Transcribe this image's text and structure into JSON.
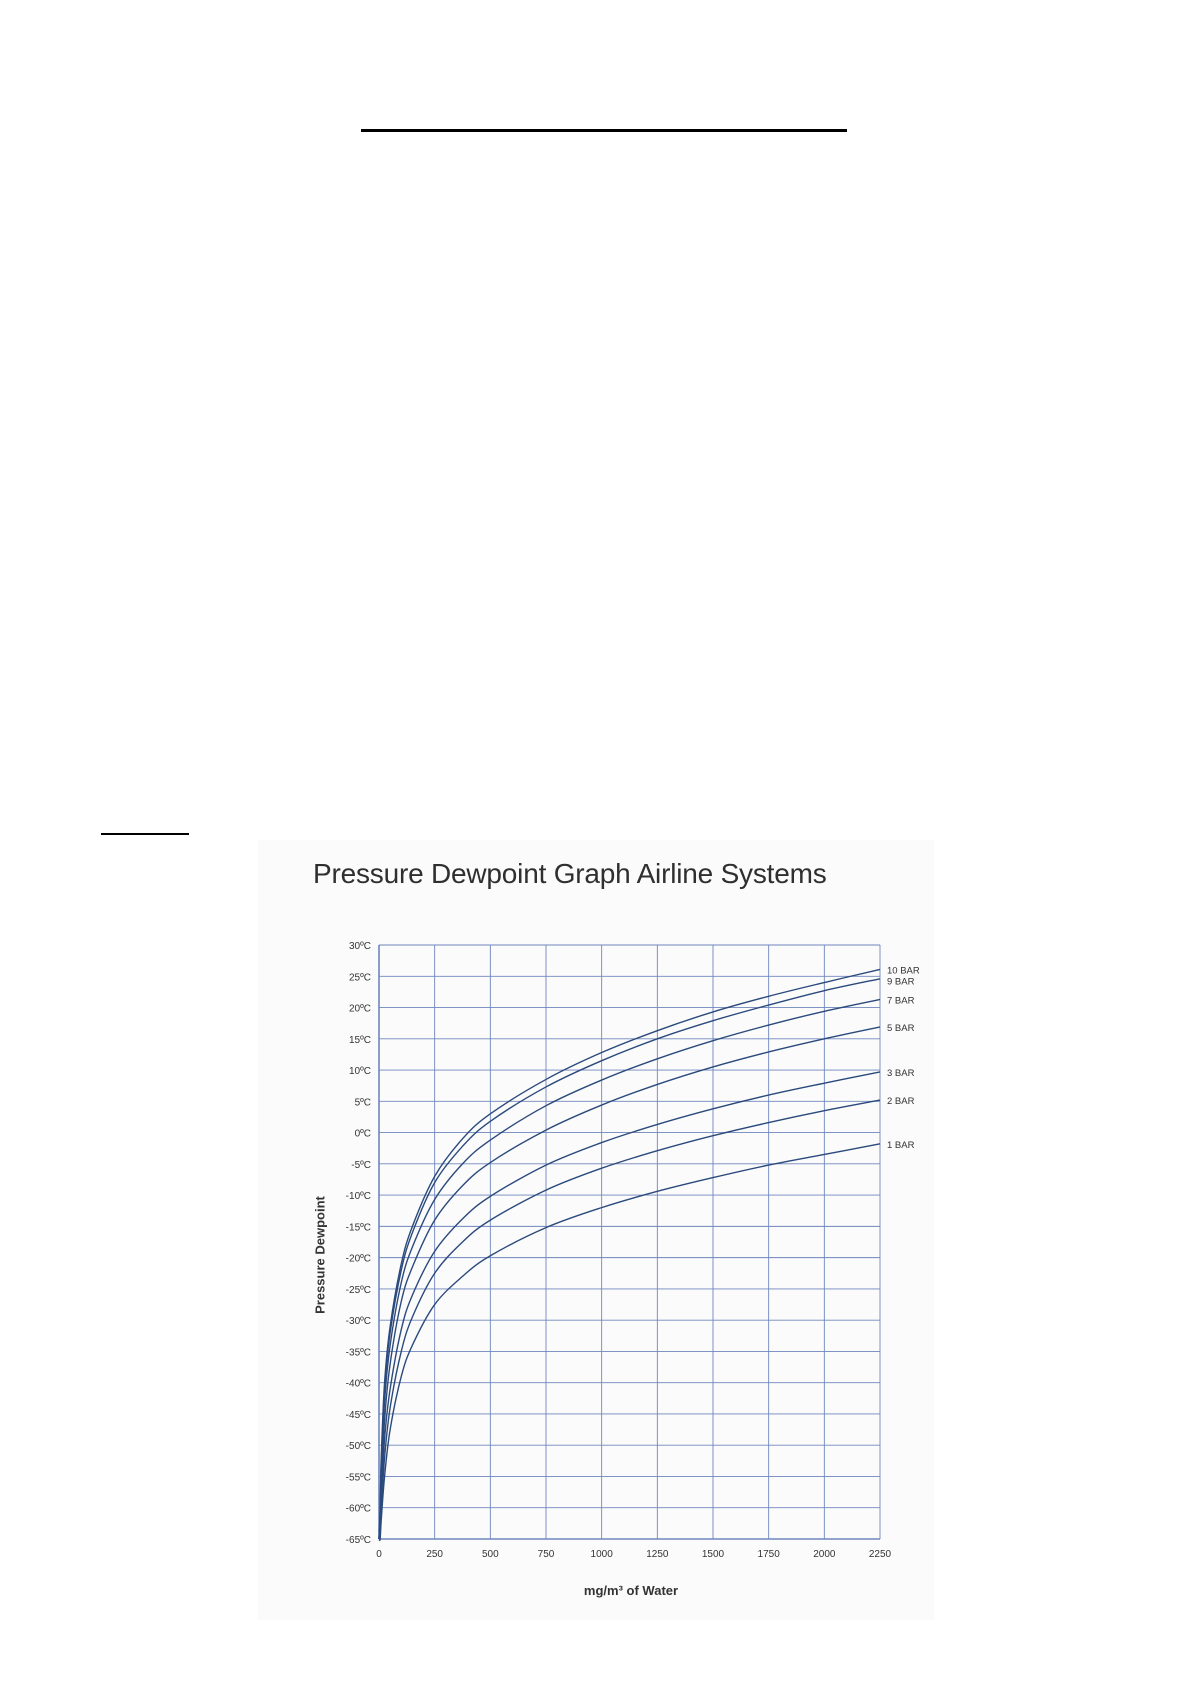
{
  "chart_data": {
    "type": "line",
    "title": "Pressure Dewpoint Graph Airline Systems",
    "xlabel": "mg/m³ of Water",
    "ylabel": "Pressure Dewpoint",
    "xlim": [
      0,
      2250
    ],
    "ylim": [
      -65,
      30
    ],
    "x_ticks": [
      "0",
      "250",
      "500",
      "750",
      "1000",
      "1250",
      "1500",
      "1750",
      "2000",
      "2250"
    ],
    "y_ticks": [
      "30ºC",
      "25ºC",
      "20ºC",
      "15ºC",
      "10ºC",
      "5ºC",
      "0ºC",
      "-5ºC",
      "-10ºC",
      "-15ºC",
      "-20ºC",
      "-25ºC",
      "-30ºC",
      "-35ºC",
      "-40ºC",
      "-45ºC",
      "-50ºC",
      "-55ºC",
      "-60ºC",
      "-65ºC"
    ],
    "grid": true,
    "legend": "right, at line ends",
    "line_color": "#2b4a7c",
    "grid_color": "#6f86bd",
    "x": [
      5,
      10,
      25,
      50,
      100,
      150,
      250,
      375,
      500,
      750,
      1000,
      1250,
      1500,
      1750,
      2000,
      2250
    ],
    "series": [
      {
        "name": "10 BAR",
        "values": [
          -60,
          -52,
          -40,
          -31,
          -21,
          -15,
          -7,
          -1,
          3,
          8.5,
          12.8,
          16.3,
          19.3,
          21.8,
          24,
          26.1
        ]
      },
      {
        "name": "9 BAR",
        "values": [
          -61,
          -53,
          -41,
          -32,
          -22,
          -16,
          -8,
          -2.2,
          1.8,
          7.3,
          11.5,
          15,
          17.9,
          20.4,
          22.7,
          24.6
        ]
      },
      {
        "name": "7 BAR",
        "values": [
          -62,
          -55,
          -43,
          -34,
          -24,
          -18.3,
          -10.7,
          -5,
          -1.2,
          4.3,
          8.4,
          11.8,
          14.7,
          17.2,
          19.4,
          21.3
        ]
      },
      {
        "name": "5 BAR",
        "values": [
          -63,
          -57,
          -46,
          -37,
          -27,
          -21.5,
          -14,
          -8.5,
          -4.8,
          0.4,
          4.4,
          7.7,
          10.5,
          12.9,
          15,
          16.9
        ]
      },
      {
        "name": "3 BAR",
        "values": [
          -64,
          -59,
          -49,
          -41,
          -31.5,
          -26,
          -19,
          -13.8,
          -10.2,
          -5.2,
          -1.6,
          1.3,
          3.8,
          6,
          7.9,
          9.7
        ]
      },
      {
        "name": "2 BAR",
        "values": [
          -64.5,
          -60.5,
          -52,
          -44,
          -35,
          -29.5,
          -22.5,
          -17.5,
          -14,
          -9.2,
          -5.7,
          -2.9,
          -0.5,
          1.6,
          3.5,
          5.2
        ]
      },
      {
        "name": "1 BAR",
        "values": [
          -65,
          -62,
          -55,
          -47.5,
          -39,
          -34,
          -27.5,
          -23,
          -19.7,
          -15.2,
          -12,
          -9.4,
          -7.2,
          -5.2,
          -3.5,
          -1.8
        ]
      }
    ]
  }
}
